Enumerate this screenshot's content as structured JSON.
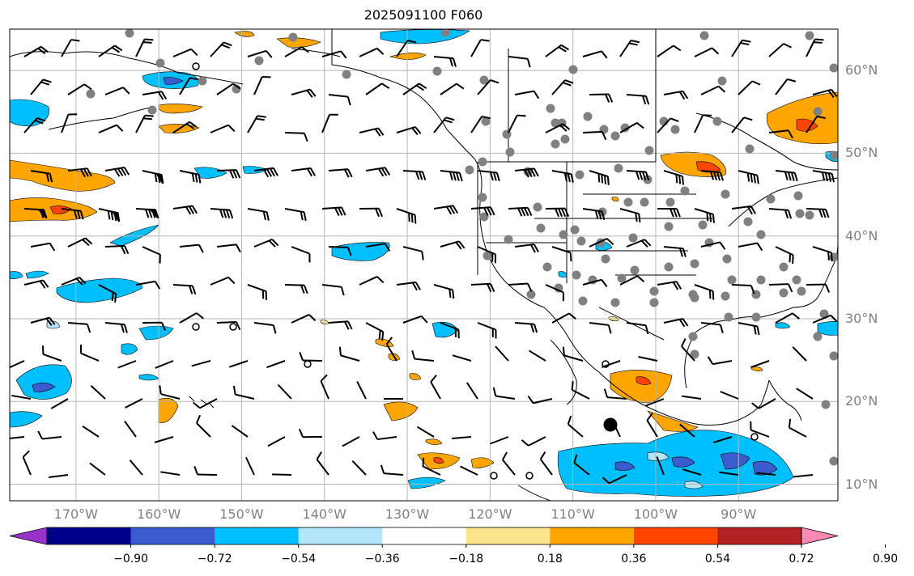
{
  "title": "2025091100 F060",
  "map": {
    "lon_range": [
      -178,
      -78
    ],
    "lat_range": [
      8,
      65
    ],
    "lon_labels": [
      "170°W",
      "160°W",
      "150°W",
      "140°W",
      "130°W",
      "120°W",
      "110°W",
      "100°W",
      "90°W"
    ],
    "lat_labels": [
      "60°N",
      "50°N",
      "40°N",
      "30°N",
      "20°N",
      "10°N"
    ],
    "gridlines": true,
    "contour_colors": {
      "neg_light": "#b3e5fb",
      "neg_mid": "#00bfff",
      "neg_deep": "#3b5ccf",
      "pos_light": "#fbe58a",
      "pos_mid": "#ffa500",
      "pos_deep": "#ff4500"
    },
    "station_marker_color": "#808080"
  },
  "colorbar": {
    "ticks": [
      "−0.90",
      "−0.72",
      "−0.54",
      "−0.36",
      "−0.18",
      "0.18",
      "0.36",
      "0.54",
      "0.72",
      "0.90"
    ],
    "colors": [
      "#9932cc",
      "#00008b",
      "#3b5ccf",
      "#00bfff",
      "#b3e5fb",
      "#ffffff",
      "#fbe58a",
      "#ffa500",
      "#ff4500",
      "#b22222",
      "#ff88b4"
    ]
  }
}
